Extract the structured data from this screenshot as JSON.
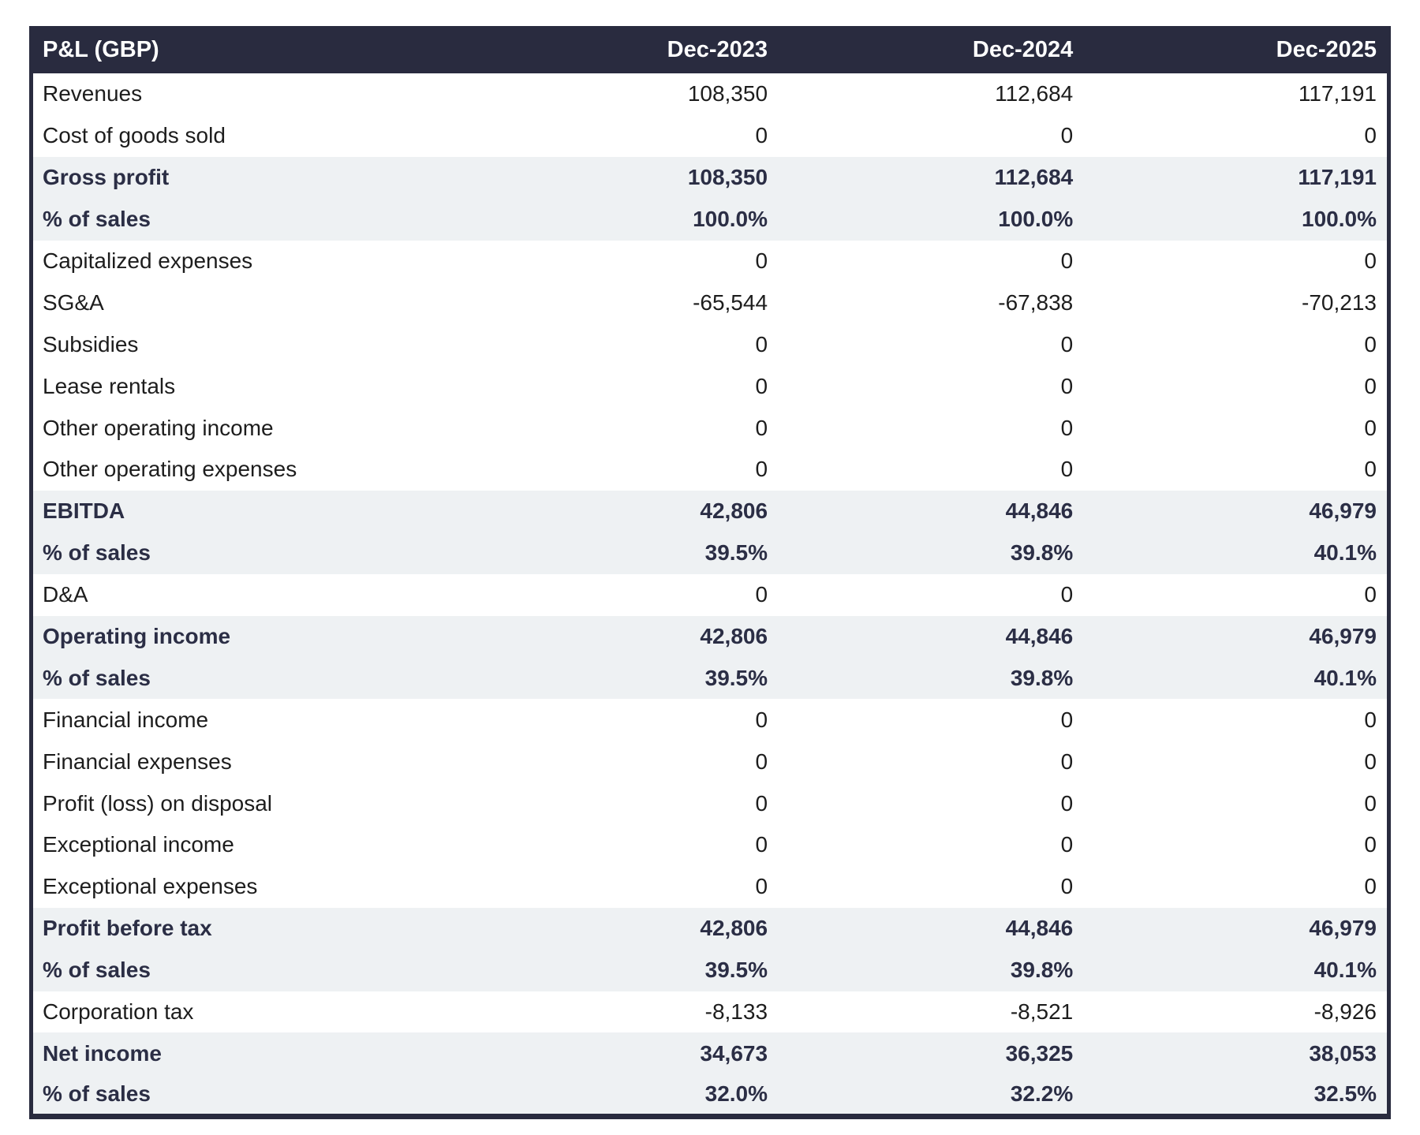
{
  "colors": {
    "header_bg": "#292b3f",
    "header_text": "#ffffff",
    "subtotal_bg": "#eef1f3",
    "subtotal_text": "#2b2e45",
    "normal_text": "#1d1d1d",
    "outer_border": "#292b3f",
    "page_bg": "#ffffff"
  },
  "table": {
    "title": "P&L (GBP)",
    "columns": [
      "Dec-2023",
      "Dec-2024",
      "Dec-2025"
    ],
    "rows": [
      {
        "label": "Revenues",
        "values": [
          "108,350",
          "112,684",
          "117,191"
        ],
        "style": "normal"
      },
      {
        "label": "Cost of goods sold",
        "values": [
          "0",
          "0",
          "0"
        ],
        "style": "normal"
      },
      {
        "label": "Gross profit",
        "values": [
          "108,350",
          "112,684",
          "117,191"
        ],
        "style": "subtotal"
      },
      {
        "label": "% of sales",
        "values": [
          "100.0%",
          "100.0%",
          "100.0%"
        ],
        "style": "subtotal"
      },
      {
        "label": "Capitalized expenses",
        "values": [
          "0",
          "0",
          "0"
        ],
        "style": "normal"
      },
      {
        "label": "SG&A",
        "values": [
          "-65,544",
          "-67,838",
          "-70,213"
        ],
        "style": "normal"
      },
      {
        "label": "Subsidies",
        "values": [
          "0",
          "0",
          "0"
        ],
        "style": "normal"
      },
      {
        "label": "Lease rentals",
        "values": [
          "0",
          "0",
          "0"
        ],
        "style": "normal"
      },
      {
        "label": "Other operating income",
        "values": [
          "0",
          "0",
          "0"
        ],
        "style": "normal"
      },
      {
        "label": "Other operating expenses",
        "values": [
          "0",
          "0",
          "0"
        ],
        "style": "normal"
      },
      {
        "label": "EBITDA",
        "values": [
          "42,806",
          "44,846",
          "46,979"
        ],
        "style": "subtotal"
      },
      {
        "label": "% of sales",
        "values": [
          "39.5%",
          "39.8%",
          "40.1%"
        ],
        "style": "subtotal"
      },
      {
        "label": "D&A",
        "values": [
          "0",
          "0",
          "0"
        ],
        "style": "normal"
      },
      {
        "label": "Operating income",
        "values": [
          "42,806",
          "44,846",
          "46,979"
        ],
        "style": "subtotal"
      },
      {
        "label": "% of sales",
        "values": [
          "39.5%",
          "39.8%",
          "40.1%"
        ],
        "style": "subtotal"
      },
      {
        "label": "Financial income",
        "values": [
          "0",
          "0",
          "0"
        ],
        "style": "normal"
      },
      {
        "label": "Financial expenses",
        "values": [
          "0",
          "0",
          "0"
        ],
        "style": "normal"
      },
      {
        "label": "Profit (loss) on disposal",
        "values": [
          "0",
          "0",
          "0"
        ],
        "style": "normal"
      },
      {
        "label": "Exceptional income",
        "values": [
          "0",
          "0",
          "0"
        ],
        "style": "normal"
      },
      {
        "label": "Exceptional expenses",
        "values": [
          "0",
          "0",
          "0"
        ],
        "style": "normal"
      },
      {
        "label": "Profit before tax",
        "values": [
          "42,806",
          "44,846",
          "46,979"
        ],
        "style": "subtotal"
      },
      {
        "label": "% of sales",
        "values": [
          "39.5%",
          "39.8%",
          "40.1%"
        ],
        "style": "subtotal"
      },
      {
        "label": "Corporation tax",
        "values": [
          "-8,133",
          "-8,521",
          "-8,926"
        ],
        "style": "normal"
      },
      {
        "label": "Net income",
        "values": [
          "34,673",
          "36,325",
          "38,053"
        ],
        "style": "subtotal"
      },
      {
        "label": "% of sales",
        "values": [
          "32.0%",
          "32.2%",
          "32.5%"
        ],
        "style": "subtotal"
      }
    ]
  },
  "chart_data": {
    "type": "table",
    "title": "P&L (GBP)",
    "columns": [
      "P&L (GBP)",
      "Dec-2023",
      "Dec-2024",
      "Dec-2025"
    ],
    "rows": [
      [
        "Revenues",
        108350,
        112684,
        117191
      ],
      [
        "Cost of goods sold",
        0,
        0,
        0
      ],
      [
        "Gross profit",
        108350,
        112684,
        117191
      ],
      [
        "% of sales",
        "100.0%",
        "100.0%",
        "100.0%"
      ],
      [
        "Capitalized expenses",
        0,
        0,
        0
      ],
      [
        "SG&A",
        -65544,
        -67838,
        -70213
      ],
      [
        "Subsidies",
        0,
        0,
        0
      ],
      [
        "Lease rentals",
        0,
        0,
        0
      ],
      [
        "Other operating income",
        0,
        0,
        0
      ],
      [
        "Other operating expenses",
        0,
        0,
        0
      ],
      [
        "EBITDA",
        42806,
        44846,
        46979
      ],
      [
        "% of sales",
        "39.5%",
        "39.8%",
        "40.1%"
      ],
      [
        "D&A",
        0,
        0,
        0
      ],
      [
        "Operating income",
        42806,
        44846,
        46979
      ],
      [
        "% of sales",
        "39.5%",
        "39.8%",
        "40.1%"
      ],
      [
        "Financial income",
        0,
        0,
        0
      ],
      [
        "Financial expenses",
        0,
        0,
        0
      ],
      [
        "Profit (loss) on disposal",
        0,
        0,
        0
      ],
      [
        "Exceptional income",
        0,
        0,
        0
      ],
      [
        "Exceptional expenses",
        0,
        0,
        0
      ],
      [
        "Profit before tax",
        42806,
        44846,
        46979
      ],
      [
        "% of sales",
        "39.5%",
        "39.8%",
        "40.1%"
      ],
      [
        "Corporation tax",
        -8133,
        -8521,
        -8926
      ],
      [
        "Net income",
        34673,
        36325,
        38053
      ],
      [
        "% of sales",
        "32.0%",
        "32.2%",
        "32.5%"
      ]
    ]
  }
}
